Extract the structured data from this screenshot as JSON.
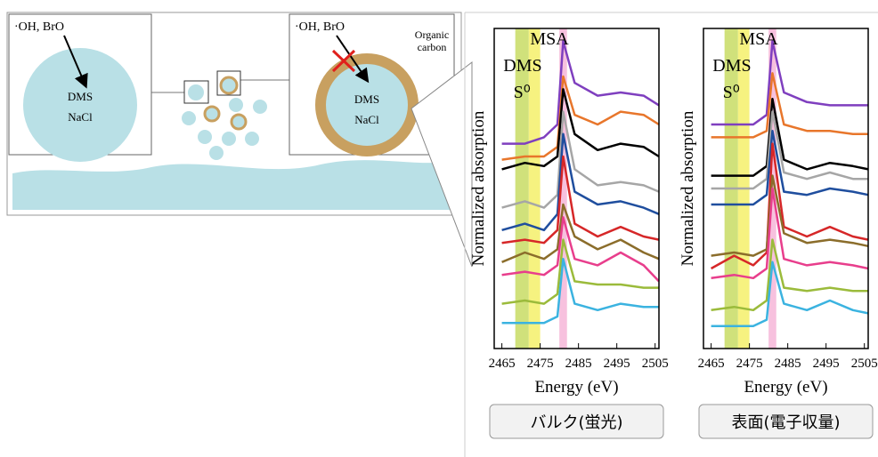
{
  "diagram": {
    "left_box": {
      "radical": "·OH, BrO",
      "core": [
        "DMS",
        "NaCl"
      ]
    },
    "right_box": {
      "radical": "·OH, BrO",
      "core": [
        "DMS",
        "NaCl"
      ],
      "shell_label": [
        "Organic",
        "carbon"
      ]
    }
  },
  "chart_data": [
    {
      "type": "line",
      "xlabel": "Energy (eV)",
      "ylabel": "Normalized absorption",
      "caption": "バルク(蛍光)",
      "xlim": [
        2463,
        2506
      ],
      "xticks": [
        2465,
        2475,
        2485,
        2495,
        2505
      ],
      "ylim": [
        0,
        10
      ],
      "bands": [
        {
          "label": "MSA",
          "range": [
            2480,
            2482
          ],
          "color": "#f6b6d8"
        },
        {
          "label": "DMS",
          "range": [
            2472,
            2475
          ],
          "color": "#f5f06a"
        },
        {
          "label": "S⁰",
          "range": [
            2468.5,
            2472
          ],
          "color": "#c8dc64"
        }
      ],
      "x": [
        2465,
        2471,
        2476,
        2479.5,
        2481,
        2484,
        2490,
        2496,
        2502,
        2506
      ],
      "series": [
        {
          "color": "#7f3fbf",
          "values": [
            6.4,
            6.4,
            6.6,
            7.0,
            9.6,
            8.3,
            7.9,
            8.0,
            7.9,
            7.6
          ]
        },
        {
          "color": "#e8762b",
          "values": [
            5.9,
            6.0,
            6.0,
            6.3,
            8.5,
            7.3,
            7.0,
            7.4,
            7.3,
            7.0
          ]
        },
        {
          "color": "#000000",
          "values": [
            5.6,
            5.8,
            5.7,
            6.0,
            8.1,
            6.7,
            6.2,
            6.4,
            6.3,
            6.0
          ]
        },
        {
          "color": "#a6a6a6",
          "values": [
            4.4,
            4.6,
            4.4,
            4.8,
            7.4,
            5.6,
            5.1,
            5.2,
            5.1,
            4.9
          ]
        },
        {
          "color": "#1f4e9e",
          "values": [
            3.7,
            3.9,
            3.7,
            4.2,
            6.7,
            4.9,
            4.5,
            4.6,
            4.4,
            4.2
          ]
        },
        {
          "color": "#d62728",
          "values": [
            3.3,
            3.4,
            3.3,
            3.7,
            6.0,
            3.9,
            3.5,
            3.8,
            3.5,
            3.4
          ]
        },
        {
          "color": "#8b6d2b",
          "values": [
            2.7,
            3.0,
            2.8,
            3.1,
            4.5,
            3.5,
            3.1,
            3.4,
            3.0,
            2.8
          ]
        },
        {
          "color": "#e83e8c",
          "values": [
            2.3,
            2.4,
            2.3,
            2.6,
            4.1,
            2.8,
            2.6,
            3.0,
            2.6,
            2.1
          ]
        },
        {
          "color": "#9bbb3b",
          "values": [
            1.4,
            1.5,
            1.4,
            1.7,
            3.4,
            2.1,
            2.0,
            2.0,
            1.9,
            1.9
          ]
        },
        {
          "color": "#3bb3e0",
          "values": [
            0.8,
            0.8,
            0.8,
            1.0,
            2.8,
            1.4,
            1.2,
            1.4,
            1.3,
            1.3
          ]
        }
      ]
    },
    {
      "type": "line",
      "xlabel": "Energy (eV)",
      "ylabel": "Normalized absorption",
      "caption": "表面(電子収量)",
      "xlim": [
        2463,
        2506
      ],
      "xticks": [
        2465,
        2475,
        2485,
        2495,
        2505
      ],
      "ylim": [
        0,
        10
      ],
      "bands": [
        {
          "label": "MSA",
          "range": [
            2480,
            2482
          ],
          "color": "#f6b6d8"
        },
        {
          "label": "DMS",
          "range": [
            2472,
            2475
          ],
          "color": "#f5f06a"
        },
        {
          "label": "S⁰",
          "range": [
            2468.5,
            2472
          ],
          "color": "#c8dc64"
        }
      ],
      "x": [
        2465,
        2471,
        2476,
        2479.5,
        2481,
        2484,
        2490,
        2496,
        2502,
        2506
      ],
      "series": [
        {
          "color": "#7f3fbf",
          "values": [
            7.0,
            7.0,
            7.0,
            7.3,
            9.6,
            8.0,
            7.7,
            7.6,
            7.6,
            7.6
          ]
        },
        {
          "color": "#e8762b",
          "values": [
            6.6,
            6.6,
            6.6,
            6.8,
            8.6,
            7.0,
            6.8,
            6.8,
            6.7,
            6.7
          ]
        },
        {
          "color": "#000000",
          "values": [
            5.4,
            5.4,
            5.4,
            5.7,
            7.8,
            5.9,
            5.6,
            5.8,
            5.7,
            5.6
          ]
        },
        {
          "color": "#a6a6a6",
          "values": [
            5.0,
            5.0,
            5.0,
            5.3,
            7.4,
            5.5,
            5.3,
            5.5,
            5.3,
            5.3
          ]
        },
        {
          "color": "#1f4e9e",
          "values": [
            4.5,
            4.5,
            4.5,
            4.8,
            6.8,
            4.9,
            4.8,
            5.0,
            4.9,
            4.8
          ]
        },
        {
          "color": "#d62728",
          "values": [
            2.5,
            2.9,
            2.6,
            3.0,
            6.4,
            3.8,
            3.5,
            3.8,
            3.5,
            3.4
          ]
        },
        {
          "color": "#8b6d2b",
          "values": [
            2.9,
            3.0,
            2.9,
            3.1,
            5.4,
            3.6,
            3.3,
            3.4,
            3.3,
            3.2
          ]
        },
        {
          "color": "#e83e8c",
          "values": [
            2.2,
            2.3,
            2.2,
            2.5,
            5.0,
            2.8,
            2.6,
            2.7,
            2.6,
            2.5
          ]
        },
        {
          "color": "#9bbb3b",
          "values": [
            1.2,
            1.3,
            1.2,
            1.5,
            3.4,
            1.9,
            1.8,
            1.9,
            1.8,
            1.8
          ]
        },
        {
          "color": "#3bb3e0",
          "values": [
            0.7,
            0.7,
            0.7,
            0.9,
            2.7,
            1.4,
            1.2,
            1.5,
            1.2,
            1.1
          ]
        }
      ]
    }
  ]
}
